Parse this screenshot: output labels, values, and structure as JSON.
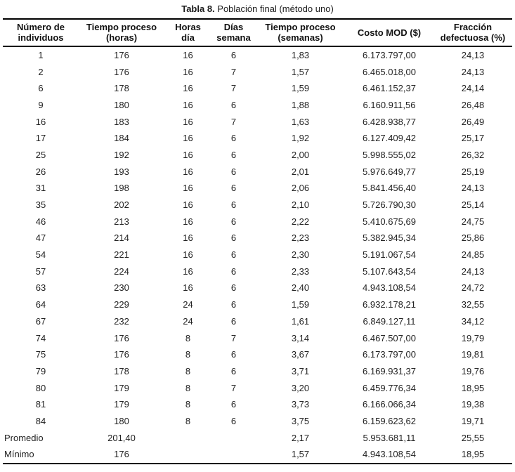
{
  "title": {
    "label": "Tabla 8.",
    "text": " Población final (método uno)"
  },
  "table": {
    "columns": [
      {
        "lines": [
          "Número de",
          "individuos"
        ]
      },
      {
        "lines": [
          "Tiempo proceso",
          "(horas)"
        ]
      },
      {
        "lines": [
          "Horas",
          "día"
        ]
      },
      {
        "lines": [
          "Días",
          "semana"
        ]
      },
      {
        "lines": [
          "Tiempo proceso",
          "(semanas)"
        ]
      },
      {
        "lines": [
          "Costo MOD ($)"
        ]
      },
      {
        "lines": [
          "Fracción",
          "defectuosa (%)"
        ]
      }
    ],
    "rows": [
      [
        "1",
        "176",
        "16",
        "6",
        "1,83",
        "6.173.797,00",
        "24,13"
      ],
      [
        "2",
        "176",
        "16",
        "7",
        "1,57",
        "6.465.018,00",
        "24,13"
      ],
      [
        "6",
        "178",
        "16",
        "7",
        "1,59",
        "6.461.152,37",
        "24,14"
      ],
      [
        "9",
        "180",
        "16",
        "6",
        "1,88",
        "6.160.911,56",
        "26,48"
      ],
      [
        "16",
        "183",
        "16",
        "7",
        "1,63",
        "6.428.938,77",
        "26,49"
      ],
      [
        "17",
        "184",
        "16",
        "6",
        "1,92",
        "6.127.409,42",
        "25,17"
      ],
      [
        "25",
        "192",
        "16",
        "6",
        "2,00",
        "5.998.555,02",
        "26,32"
      ],
      [
        "26",
        "193",
        "16",
        "6",
        "2,01",
        "5.976.649,77",
        "25,19"
      ],
      [
        "31",
        "198",
        "16",
        "6",
        "2,06",
        "5.841.456,40",
        "24,13"
      ],
      [
        "35",
        "202",
        "16",
        "6",
        "2,10",
        "5.726.790,30",
        "25,14"
      ],
      [
        "46",
        "213",
        "16",
        "6",
        "2,22",
        "5.410.675,69",
        "24,75"
      ],
      [
        "47",
        "214",
        "16",
        "6",
        "2,23",
        "5.382.945,34",
        "25,86"
      ],
      [
        "54",
        "221",
        "16",
        "6",
        "2,30",
        "5.191.067,54",
        "24,85"
      ],
      [
        "57",
        "224",
        "16",
        "6",
        "2,33",
        "5.107.643,54",
        "24,13"
      ],
      [
        "63",
        "230",
        "16",
        "6",
        "2,40",
        "4.943.108,54",
        "24,72"
      ],
      [
        "64",
        "229",
        "24",
        "6",
        "1,59",
        "6.932.178,21",
        "32,55"
      ],
      [
        "67",
        "232",
        "24",
        "6",
        "1,61",
        "6.849.127,11",
        "34,12"
      ],
      [
        "74",
        "176",
        "8",
        "7",
        "3,14",
        "6.467.507,00",
        "19,79"
      ],
      [
        "75",
        "176",
        "8",
        "6",
        "3,67",
        "6.173.797,00",
        "19,81"
      ],
      [
        "79",
        "178",
        "8",
        "6",
        "3,71",
        "6.169.931,37",
        "19,76"
      ],
      [
        "80",
        "179",
        "8",
        "7",
        "3,20",
        "6.459.776,34",
        "18,95"
      ],
      [
        "81",
        "179",
        "8",
        "6",
        "3,73",
        "6.166.066,34",
        "19,38"
      ],
      [
        "84",
        "180",
        "8",
        "6",
        "3,75",
        "6.159.623,62",
        "19,71"
      ]
    ],
    "summary_rows": [
      [
        "Promedio",
        "201,40",
        "",
        "",
        "2,17",
        "5.953.681,11",
        "25,55"
      ],
      [
        "Mínimo",
        "176",
        "",
        "",
        "1,57",
        "4.943.108,54",
        "18,95"
      ]
    ]
  }
}
